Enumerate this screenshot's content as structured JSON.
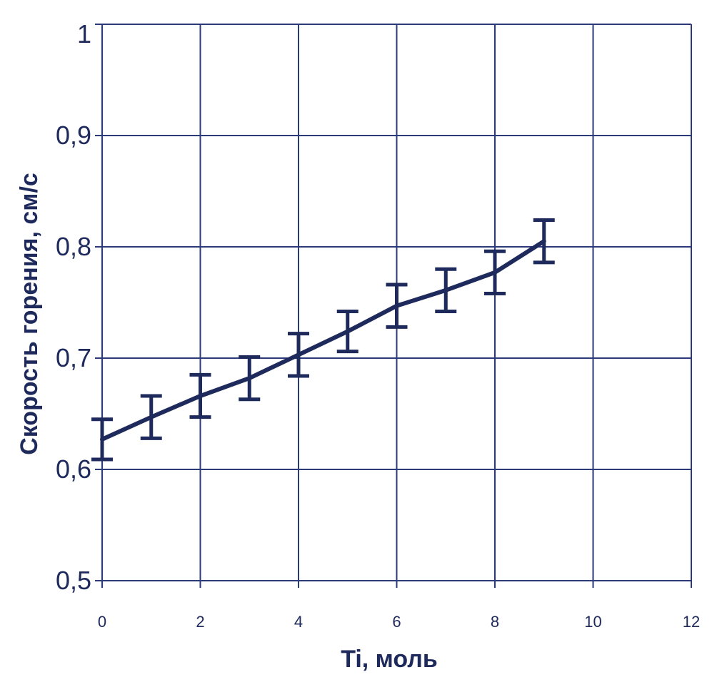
{
  "chart_data": {
    "type": "line",
    "title": "",
    "xlabel": "Ti, моль",
    "ylabel": "Скорость горения, см/с",
    "xlim": [
      0,
      12
    ],
    "ylim": [
      0.5,
      1.0
    ],
    "x_ticks": [
      0,
      2,
      4,
      6,
      8,
      10,
      12
    ],
    "x_tick_labels": [
      "0",
      "2",
      "4",
      "6",
      "8",
      "10",
      "12"
    ],
    "y_ticks": [
      0.5,
      0.6,
      0.7,
      0.8,
      0.9,
      1.0
    ],
    "y_tick_labels": [
      "0,5",
      "0,6",
      "0,7",
      "0,8",
      "0,9",
      "1"
    ],
    "grid": true,
    "series": [
      {
        "x": [
          0,
          1,
          2,
          3,
          4,
          5,
          6,
          7,
          8,
          9
        ],
        "y": [
          0.627,
          0.647,
          0.666,
          0.682,
          0.703,
          0.724,
          0.747,
          0.761,
          0.777,
          0.805
        ],
        "error": [
          0.018,
          0.019,
          0.019,
          0.019,
          0.019,
          0.018,
          0.019,
          0.019,
          0.019,
          0.019
        ],
        "color": "#1f2a5c"
      }
    ],
    "colors": {
      "grid": "#2a3a7a",
      "line": "#1f2a5c",
      "text": "#1f2a5c"
    }
  }
}
